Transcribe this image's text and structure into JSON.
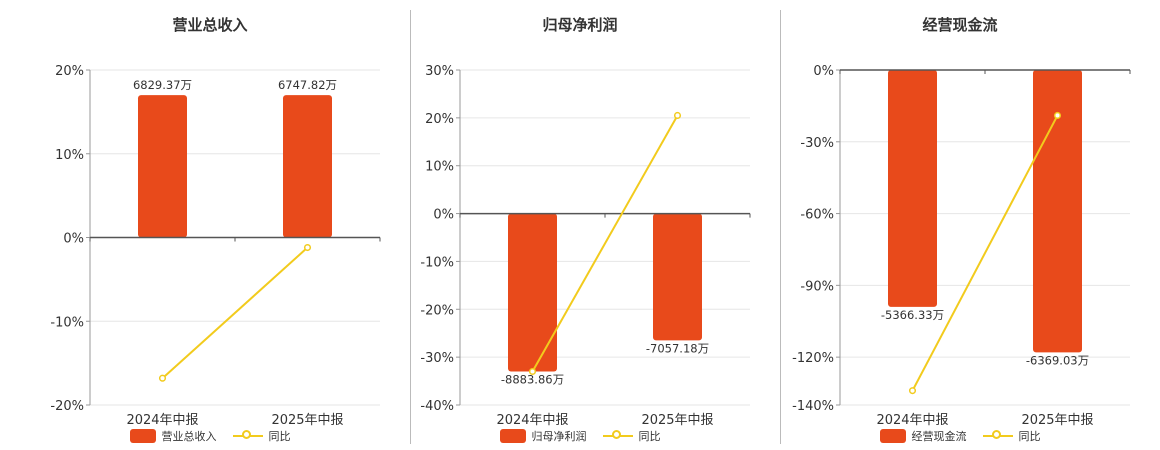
{
  "colors": {
    "bar": "#E84A1B",
    "line": "#F2CB1D",
    "axis": "#555555",
    "grid": "#E6E6E6",
    "text": "#333333"
  },
  "chart_data": [
    {
      "type": "bar",
      "title": "营业总收入",
      "categories": [
        "2024年中报",
        "2025年中报"
      ],
      "bar_values_pct": [
        17,
        17
      ],
      "bar_labels": [
        "6829.37万",
        "6747.82万"
      ],
      "line_values_pct": [
        -16.8,
        -1.2
      ],
      "yticks": [
        "20%",
        "10%",
        "0%",
        "-10%",
        "-20%"
      ],
      "ylim": [
        -20,
        20
      ],
      "legend": [
        "营业总收入",
        "同比"
      ]
    },
    {
      "type": "bar",
      "title": "归母净利润",
      "categories": [
        "2024年中报",
        "2025年中报"
      ],
      "bar_values_pct": [
        -33,
        -26.5
      ],
      "bar_labels": [
        "-8883.86万",
        "-7057.18万"
      ],
      "line_values_pct": [
        -33,
        20.5
      ],
      "yticks": [
        "30%",
        "20%",
        "10%",
        "0%",
        "-10%",
        "-20%",
        "-30%",
        "-40%"
      ],
      "ylim": [
        -40,
        30
      ],
      "legend": [
        "归母净利润",
        "同比"
      ]
    },
    {
      "type": "bar",
      "title": "经营现金流",
      "categories": [
        "2024年中报",
        "2025年中报"
      ],
      "bar_values_pct": [
        -99,
        -118
      ],
      "bar_labels": [
        "-5366.33万",
        "-6369.03万"
      ],
      "line_values_pct": [
        -134,
        -19
      ],
      "yticks": [
        "0%",
        "-30%",
        "-60%",
        "-90%",
        "-120%",
        "-140%"
      ],
      "ytick_values": [
        0,
        -30,
        -60,
        -90,
        -120,
        -140
      ],
      "ylim": [
        -140,
        0
      ],
      "legend": [
        "经营现金流",
        "同比"
      ]
    }
  ]
}
